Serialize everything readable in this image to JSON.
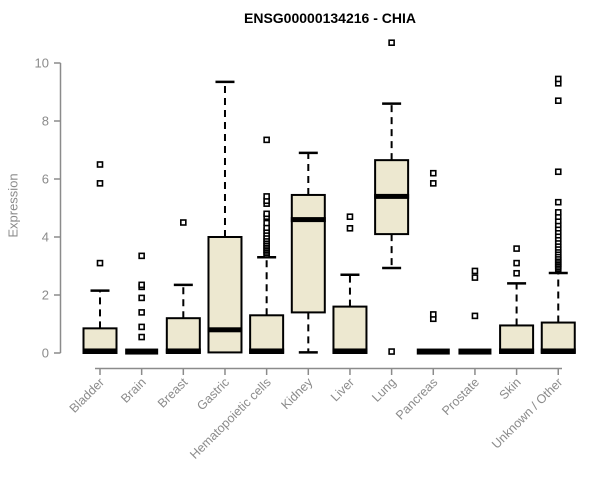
{
  "chart_data": {
    "type": "boxplot",
    "title": "ENSG00000134216 - CHIA",
    "ylabel": "Expression",
    "xlabel": "",
    "ylim": [
      0,
      10
    ],
    "yticks": [
      0,
      2,
      4,
      6,
      8,
      10
    ],
    "grid": false,
    "legend": "none",
    "box_fill": "#ede8d0",
    "box_stroke": "#000000",
    "axis_color": "#8b8b8b",
    "label_color": "#8b8b8b",
    "title_color": "#000000",
    "categories": [
      {
        "label": "Bladder",
        "flat": false,
        "q1": 0,
        "median": 0.07,
        "q3": 0.85,
        "whisker_high": 2.15,
        "whisker_low": null,
        "outliers": [
          3.1,
          5.85,
          6.5
        ]
      },
      {
        "label": "Brain",
        "flat": true,
        "median": 0.05,
        "outliers": [
          0.55,
          0.9,
          1.4,
          1.9,
          2.28,
          2.35,
          3.35
        ]
      },
      {
        "label": "Breast",
        "flat": false,
        "q1": 0,
        "median": 0.07,
        "q3": 1.2,
        "whisker_high": 2.35,
        "whisker_low": null,
        "outliers": [
          4.5
        ]
      },
      {
        "label": "Gastric",
        "flat": false,
        "q1": 0.02,
        "median": 0.8,
        "q3": 4.0,
        "whisker_high": 9.35,
        "whisker_low": null,
        "outliers": []
      },
      {
        "label": "Hematopoietic cells",
        "flat": false,
        "q1": 0,
        "median": 0.07,
        "q3": 1.3,
        "whisker_high": 3.3,
        "whisker_low": null,
        "outliers": [
          3.38,
          3.44,
          3.5,
          3.56,
          3.62,
          3.68,
          3.74,
          3.8,
          3.87,
          3.94,
          4.02,
          4.12,
          4.22,
          4.32,
          4.48,
          4.7,
          4.8,
          5.15,
          5.25,
          5.4,
          7.35
        ]
      },
      {
        "label": "Kidney",
        "flat": false,
        "q1": 1.4,
        "median": 4.6,
        "q3": 5.45,
        "whisker_high": 6.9,
        "whisker_low": 0.02,
        "outliers": []
      },
      {
        "label": "Liver",
        "flat": false,
        "q1": 0,
        "median": 0.07,
        "q3": 1.6,
        "whisker_high": 2.7,
        "whisker_low": null,
        "outliers": [
          4.3,
          4.7
        ]
      },
      {
        "label": "Lung",
        "flat": false,
        "q1": 4.1,
        "median": 5.4,
        "q3": 6.65,
        "whisker_high": 8.6,
        "whisker_low": 2.93,
        "outliers": [
          0.05,
          10.7
        ]
      },
      {
        "label": "Pancreas",
        "flat": true,
        "median": 0.05,
        "outliers": [
          1.18,
          1.33,
          5.85,
          6.2
        ]
      },
      {
        "label": "Prostate",
        "flat": true,
        "median": 0.05,
        "outliers": [
          1.28,
          2.6,
          2.83
        ]
      },
      {
        "label": "Skin",
        "flat": false,
        "q1": 0,
        "median": 0.07,
        "q3": 0.95,
        "whisker_high": 2.4,
        "whisker_low": null,
        "outliers": [
          2.75,
          3.1,
          3.6
        ]
      },
      {
        "label": "Unknown / Other",
        "flat": false,
        "q1": 0,
        "median": 0.07,
        "q3": 1.05,
        "whisker_high": 2.76,
        "whisker_low": null,
        "outliers": [
          2.9,
          2.96,
          3.02,
          3.08,
          3.14,
          3.2,
          3.26,
          3.32,
          3.4,
          3.48,
          3.56,
          3.64,
          3.74,
          3.84,
          3.95,
          4.06,
          4.18,
          4.3,
          4.42,
          4.55,
          4.7,
          4.85,
          5.2,
          6.25,
          8.7,
          9.3,
          9.45
        ]
      }
    ]
  }
}
